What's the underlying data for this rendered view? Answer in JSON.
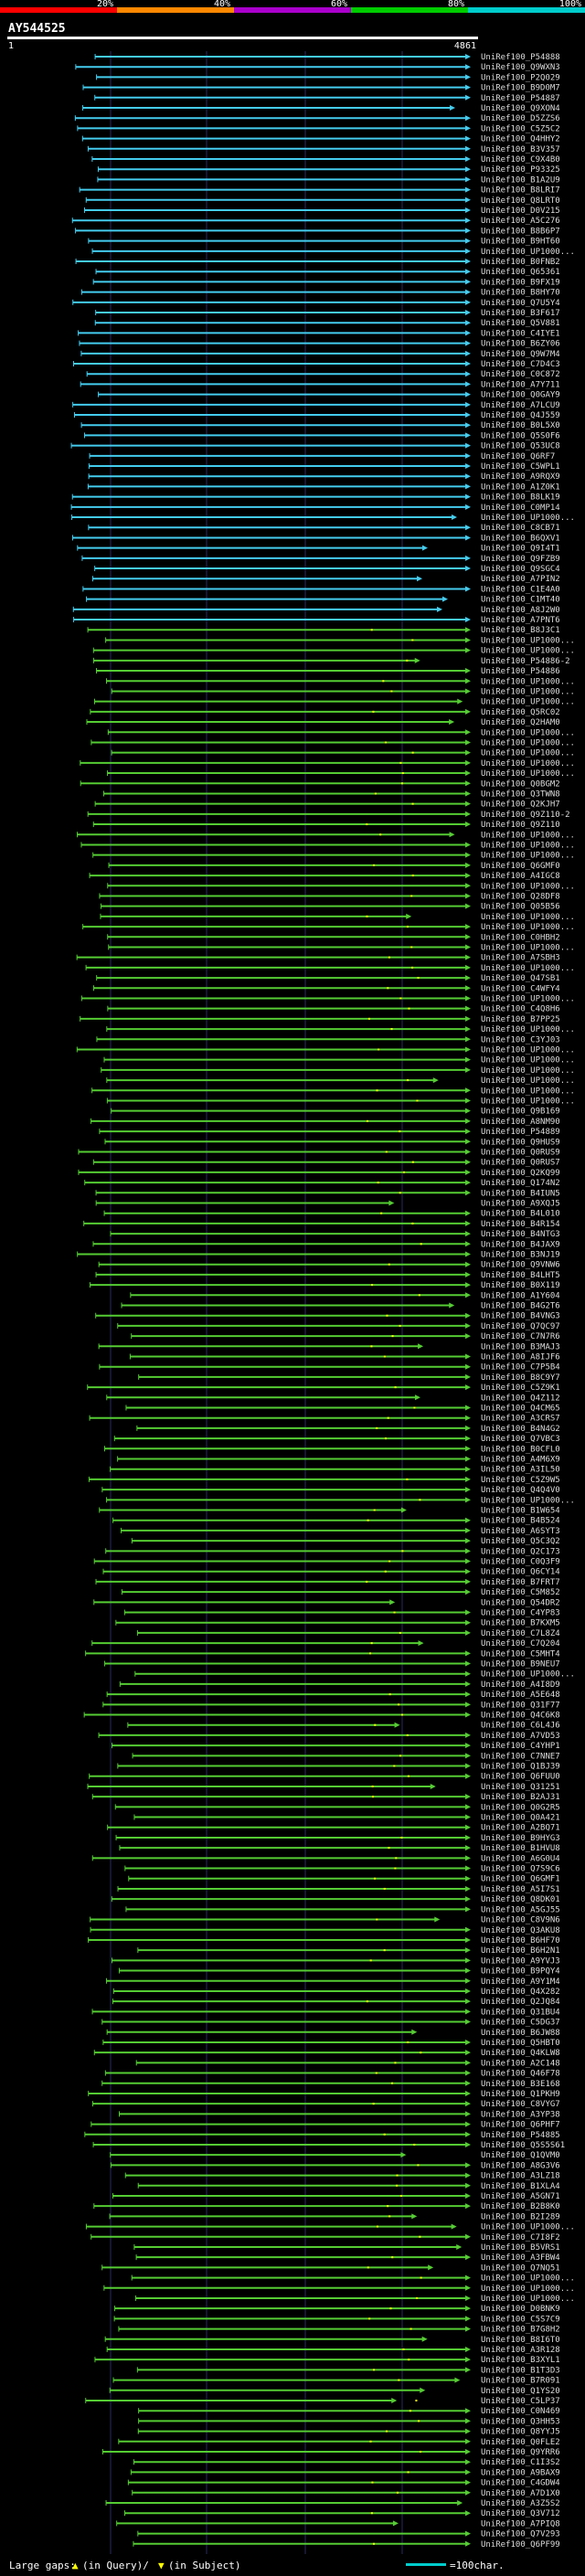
{
  "chart_data": {
    "type": "alignment-overview",
    "title": "AY544525",
    "query_length": 4861,
    "axis": {
      "start": "1",
      "end": "4861"
    },
    "identity_scale": {
      "labels": [
        "20%",
        "40%",
        "60%",
        "80%",
        "100%"
      ],
      "colors": [
        "#ff0000",
        "#ff8800",
        "#aa00cc",
        "#00cc00",
        "#00cccc"
      ]
    },
    "legend": {
      "large_gaps": "Large gaps:",
      "gap_desc": "(in Query)/",
      "gap_desc2": "(in Subject)",
      "scale_text": "=100char."
    },
    "hits": [
      "UniRef100_P54888",
      "UniRef100_Q9WXN3",
      "UniRef100_P2Q029",
      "UniRef100_B9D0M7",
      "UniRef100_P54887",
      "UniRef100_Q9XON4",
      "UniRef100_D5ZZS6",
      "UniRef100_C5Z5C2",
      "UniRef100_Q4HHY2",
      "UniRef100_B3V357",
      "UniRef100_C9X4B0",
      "UniRef100_P93325",
      "UniRef100_B1A2U9",
      "UniRef100_B8LRI7",
      "UniRef100_Q8LRT0",
      "UniRef100_D0V215",
      "UniRef100_A5C276",
      "UniRef100_B8B6P7",
      "UniRef100_B9HT60",
      "UniRef100_UP1000...",
      "UniRef100_B0FNB2",
      "UniRef100_Q65361",
      "UniRef100_B9FX19",
      "UniRef100_B8HY70",
      "UniRef100_Q7U5Y4",
      "UniRef100_B3F617",
      "UniRef100_Q5V881",
      "UniRef100_C4IYE1",
      "UniRef100_B6ZY06",
      "UniRef100_Q9W7M4",
      "UniRef100_C7D4C3",
      "UniRef100_C0C872",
      "UniRef100_A7Y711",
      "UniRef100_Q0GAY9",
      "UniRef100_A7LCU9",
      "UniRef100_Q4J559",
      "UniRef100_B0L5X0",
      "UniRef100_Q5S0F6",
      "UniRef100_Q53UC8",
      "UniRef100_Q6RF7",
      "UniRef100_C5WPL1",
      "UniRef100_A9RQX9",
      "UniRef100_A1Z0K1",
      "UniRef100_B8LK19",
      "UniRef100_C0MP14",
      "UniRef100_UP1000...",
      "UniRef100_C8CB71",
      "UniRef100_B6QXV1",
      "UniRef100_Q9I4T1",
      "UniRef100_Q9FZB9",
      "UniRef100_Q9SGC4",
      "UniRef100_A7PIN2",
      "UniRef100_C1E4A0",
      "UniRef100_C1MT40",
      "UniRef100_A8J2W0",
      "UniRef100_A7PNT6",
      "UniRef100_B8J3C1",
      "UniRef100_UP1000...",
      "UniRef100_UP1000...",
      "UniRef100_P54886-2",
      "UniRef100_P54886",
      "UniRef100_UP1000...",
      "UniRef100_UP1000...",
      "UniRef100_UP1000...",
      "UniRef100_Q5RC02",
      "UniRef100_Q2HAM0",
      "UniRef100_UP1000...",
      "UniRef100_UP1000...",
      "UniRef100_UP1000...",
      "UniRef100_UP1000...",
      "UniRef100_UP1000...",
      "UniRef100_Q0BGM2",
      "UniRef100_Q3TWN8",
      "UniRef100_Q2KJH7",
      "UniRef100_Q9Z110-2",
      "UniRef100_Q9Z110",
      "UniRef100_UP1000...",
      "UniRef100_UP1000...",
      "UniRef100_UP1000...",
      "UniRef100_Q6GMF0",
      "UniRef100_A4IGC8",
      "UniRef100_UP1000...",
      "UniRef100_Q28DF8",
      "UniRef100_Q05B56",
      "UniRef100_UP1000...",
      "UniRef100_UP1000...",
      "UniRef100_C0HBH2",
      "UniRef100_UP1000...",
      "UniRef100_A7SBH3",
      "UniRef100_UP1000...",
      "UniRef100_Q47SB1",
      "UniRef100_C4WFY4",
      "UniRef100_UP1000...",
      "UniRef100_C4Q8H6",
      "UniRef100_B7PP25",
      "UniRef100_UP1000...",
      "UniRef100_C3YJ03",
      "UniRef100_UP1000...",
      "UniRef100_UP1000...",
      "UniRef100_UP1000...",
      "UniRef100_UP1000...",
      "UniRef100_UP1000...",
      "UniRef100_UP1000...",
      "UniRef100_Q9B169",
      "UniRef100_A8NM90",
      "UniRef100_P54889",
      "UniRef100_Q9HUS9",
      "UniRef100_Q0RUS9",
      "UniRef100_Q0RUS7",
      "UniRef100_Q2KQ99",
      "UniRef100_Q174N2",
      "UniRef100_B4IUN5",
      "UniRef100_A9XQJ5",
      "UniRef100_B4L010",
      "UniRef100_B4R154",
      "UniRef100_B4NTG3",
      "UniRef100_B4JAX9",
      "UniRef100_B3NJ19",
      "UniRef100_Q9VNW6",
      "UniRef100_B4LHT5",
      "UniRef100_B0X119",
      "UniRef100_A1Y604",
      "UniRef100_B4G2T6",
      "UniRef100_B4VNG3",
      "UniRef100_Q7QC97",
      "UniRef100_C7N7R6",
      "UniRef100_B3MAJ3",
      "UniRef100_A8IJF6",
      "UniRef100_C7P5B4",
      "UniRef100_B8C9Y7",
      "UniRef100_C5Z9K1",
      "UniRef100_Q4Z112",
      "UniRef100_Q4CM65",
      "UniRef100_A3CRS7",
      "UniRef100_B4N4G2",
      "UniRef100_Q7VBC3",
      "UniRef100_B0CFL0",
      "UniRef100_A4M6X9",
      "UniRef100_A3IL50",
      "UniRef100_C5Z9W5",
      "UniRef100_Q4Q4V0",
      "UniRef100_UP1000...",
      "UniRef100_B1W654",
      "UniRef100_B4B524",
      "UniRef100_A6SYT3",
      "UniRef100_Q5C3Q2",
      "UniRef100_Q2C173",
      "UniRef100_C0Q3F9",
      "UniRef100_Q6CY14",
      "UniRef100_B7FRT7",
      "UniRef100_C5M852",
      "UniRef100_Q54DR2",
      "UniRef100_C4YP83",
      "UniRef100_B7KXM5",
      "UniRef100_C7L8Z4",
      "UniRef100_C7Q204",
      "UniRef100_C5MHT4",
      "UniRef100_B9NEU7",
      "UniRef100_UP1000...",
      "UniRef100_A4I8D9",
      "UniRef100_A5E648",
      "UniRef100_Q31F77",
      "UniRef100_Q4C6K8",
      "UniRef100_C6L4J6",
      "UniRef100_A7VD53",
      "UniRef100_C4YHP1",
      "UniRef100_C7NNE7",
      "UniRef100_Q1BJ39",
      "UniRef100_Q6FUU0",
      "UniRef100_Q31251",
      "UniRef100_B2AJ31",
      "UniRef100_Q0G2R5",
      "UniRef100_Q0A421",
      "UniRef100_A2BQ71",
      "UniRef100_B9HYG3",
      "UniRef100_B1HVU8",
      "UniRef100_A6G0U4",
      "UniRef100_Q7S9C6",
      "UniRef100_Q6GMF1",
      "UniRef100_A5I7S1",
      "UniRef100_Q8DK01",
      "UniRef100_A5GJ55",
      "UniRef100_C8V9N6",
      "UniRef100_Q3AKU8",
      "UniRef100_B6HF70",
      "UniRef100_B6H2N1",
      "UniRef100_A9YVJ3",
      "UniRef100_B9PQY4",
      "UniRef100_A9Y1M4",
      "UniRef100_Q4X282",
      "UniRef100_Q2JQ84",
      "UniRef100_Q31BU4",
      "UniRef100_C5DG37",
      "UniRef100_B6JW88",
      "UniRef100_Q5HBT0",
      "UniRef100_Q4KLW8",
      "UniRef100_A2C148",
      "UniRef100_Q46F78",
      "UniRef100_B3E168",
      "UniRef100_Q1PKH9",
      "UniRef100_C8VYG7",
      "UniRef100_A3YP38",
      "UniRef100_Q6PHF7",
      "UniRef100_P54885",
      "UniRef100_Q5S5S61",
      "UniRef100_Q1QVM0",
      "UniRef100_A8G3V6",
      "UniRef100_A3LZ18",
      "UniRef100_B1XLA4",
      "UniRef100_A5GN71",
      "UniRef100_B2B8K0",
      "UniRef100_B2I289",
      "UniRef100_UP1000...",
      "UniRef100_C7I8F2",
      "UniRef100_B5VRS1",
      "UniRef100_A3FBW4",
      "UniRef100_Q7NQ51",
      "UniRef100_UP1000...",
      "UniRef100_UP1000...",
      "UniRef100_UP1000...",
      "UniRef100_D0BNK9",
      "UniRef100_C5S7C9",
      "UniRef100_B7G8H2",
      "UniRef100_B8I6T0",
      "UniRef100_A3R128",
      "UniRef100_B3XYL1",
      "UniRef100_B1T3D3",
      "UniRef100_B7R091",
      "UniRef100_Q1YS20",
      "UniRef100_C5LP37",
      "UniRef100_C0N469",
      "UniRef100_Q3HH53",
      "UniRef100_Q8YYJ5",
      "UniRef100_Q0FLE2",
      "UniRef100_Q9YRR6",
      "UniRef100_C1I3S2",
      "UniRef100_A9BAX9",
      "UniRef100_C4GDW4",
      "UniRef100_A7D1X0",
      "UniRef100_A3Z5S2",
      "UniRef100_Q3V712",
      "UniRef100_A7PIQ8",
      "UniRef100_Q7V293",
      "UniRef100_Q6PF99"
    ]
  }
}
